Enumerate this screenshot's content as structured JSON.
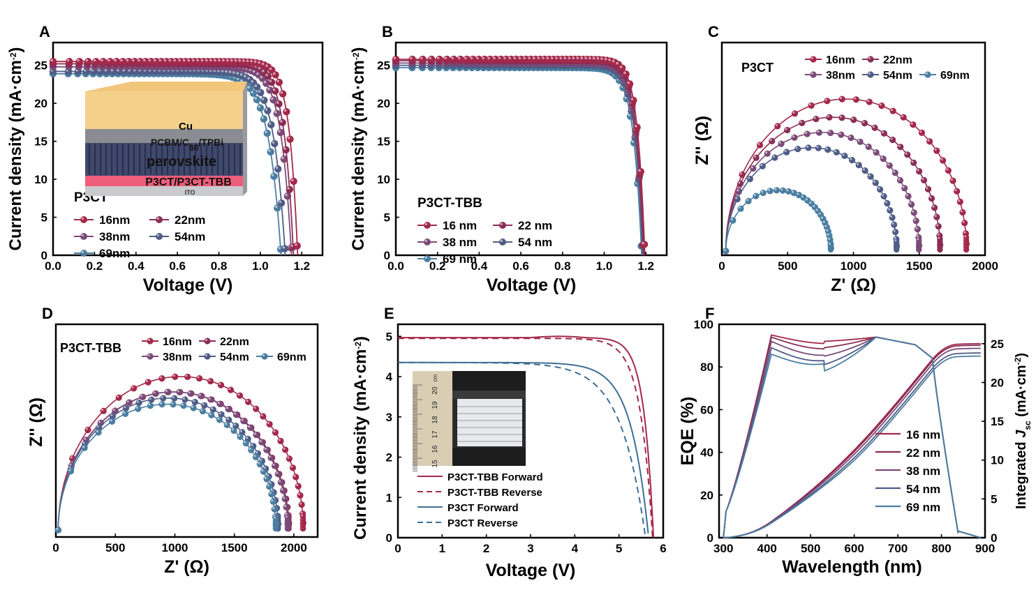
{
  "colors": {
    "16": "#A3284A",
    "22": "#8A2D55",
    "38": "#7A4A78",
    "54": "#4F5C86",
    "69": "#4A7EA0",
    "tbb": "#A3284A",
    "p3ct": "#3E6E93"
  },
  "chart_data": [
    {
      "panel": "A",
      "type": "line",
      "xlabel": "Voltage (V)",
      "ylabel": "Current density (mA·cm-2)",
      "xlim": [
        0,
        1.3
      ],
      "ylim": [
        0,
        28
      ],
      "xticks": [
        "0.0",
        "0.2",
        "0.4",
        "0.6",
        "0.8",
        "1.0",
        "1.2"
      ],
      "yticks": [
        "0",
        "5",
        "10",
        "15",
        "20",
        "25"
      ],
      "legend_title": "P3CT",
      "legend_labels": [
        "16nm",
        "22nm",
        "38nm",
        "54nm",
        "69nm"
      ],
      "inset_layers": [
        "Cu",
        "PCBM/C60/TPBi",
        "perovskite",
        "P3CT/P3CT-TBB",
        "ITO"
      ],
      "series": [
        {
          "name": "16nm",
          "jsc": 25.5,
          "voc": 1.18,
          "knee": 0.04
        },
        {
          "name": "22nm",
          "jsc": 25.2,
          "voc": 1.16,
          "knee": 0.045
        },
        {
          "name": "38nm",
          "jsc": 24.8,
          "voc": 1.15,
          "knee": 0.05
        },
        {
          "name": "54nm",
          "jsc": 24.2,
          "voc": 1.12,
          "knee": 0.055
        },
        {
          "name": "69nm",
          "jsc": 23.9,
          "voc": 1.1,
          "knee": 0.06
        }
      ]
    },
    {
      "panel": "B",
      "type": "line",
      "xlabel": "Voltage (V)",
      "ylabel": "Current density (mA·cm-2)",
      "xlim": [
        0,
        1.3
      ],
      "ylim": [
        0,
        28
      ],
      "xticks": [
        "0.0",
        "0.2",
        "0.4",
        "0.6",
        "0.8",
        "1.0",
        "1.2"
      ],
      "yticks": [
        "0",
        "5",
        "10",
        "15",
        "20",
        "25"
      ],
      "legend_title": "P3CT-TBB",
      "legend_labels": [
        "16 nm",
        "22 nm",
        "38 nm",
        "54 nm",
        "69 nm"
      ],
      "series": [
        {
          "name": "16 nm",
          "jsc": 25.8,
          "voc": 1.195,
          "knee": 0.035
        },
        {
          "name": "22 nm",
          "jsc": 25.6,
          "voc": 1.19,
          "knee": 0.036
        },
        {
          "name": "38 nm",
          "jsc": 25.3,
          "voc": 1.188,
          "knee": 0.037
        },
        {
          "name": "54 nm",
          "jsc": 25.0,
          "voc": 1.185,
          "knee": 0.038
        },
        {
          "name": "69 nm",
          "jsc": 24.7,
          "voc": 1.18,
          "knee": 0.04
        }
      ]
    },
    {
      "panel": "C",
      "type": "scatter",
      "xlabel": "Z' (Ω)",
      "ylabel": "Z'' (Ω)",
      "xlim": [
        0,
        2000
      ],
      "xticks": [
        "0",
        "500",
        "1000",
        "1500",
        "2000"
      ],
      "legend_title": "P3CT",
      "legend_labels": [
        "16nm",
        "22nm",
        "38nm",
        "54nm",
        "69nm"
      ],
      "series": [
        {
          "name": "16nm",
          "x0": 30,
          "x1": 1860
        },
        {
          "name": "22nm",
          "x0": 30,
          "x1": 1660
        },
        {
          "name": "38nm",
          "x0": 30,
          "x1": 1500
        },
        {
          "name": "54nm",
          "x0": 30,
          "x1": 1330
        },
        {
          "name": "69nm",
          "x0": 30,
          "x1": 830
        }
      ]
    },
    {
      "panel": "D",
      "type": "scatter",
      "xlabel": "Z' (Ω)",
      "ylabel": "Z'' (Ω)",
      "xlim": [
        0,
        2200
      ],
      "xticks": [
        "0",
        "500",
        "1000",
        "1500",
        "2000"
      ],
      "legend_title": "P3CT-TBB",
      "legend_labels": [
        "16nm",
        "22nm",
        "38nm",
        "54nm",
        "69nm"
      ],
      "series": [
        {
          "name": "16nm",
          "x0": 20,
          "x1": 2080
        },
        {
          "name": "22nm",
          "x0": 20,
          "x1": 1960
        },
        {
          "name": "38nm",
          "x0": 20,
          "x1": 1950
        },
        {
          "name": "54nm",
          "x0": 20,
          "x1": 1870
        },
        {
          "name": "69nm",
          "x0": 20,
          "x1": 1850
        }
      ]
    },
    {
      "panel": "E",
      "type": "line",
      "xlabel": "Voltage (V)",
      "ylabel": "Current density (mA·cm-2)",
      "xlim": [
        0,
        6
      ],
      "ylim": [
        0,
        5.3
      ],
      "xticks": [
        "0",
        "1",
        "2",
        "3",
        "4",
        "5",
        "6"
      ],
      "yticks": [
        "0",
        "1",
        "2",
        "3",
        "4",
        "5"
      ],
      "ruler_labels": [
        "20",
        "19",
        "18",
        "17",
        "16",
        "15"
      ],
      "ruler_unit": "cm",
      "legend_labels": [
        "P3CT-TBB Forward",
        "P3CT-TBB Reverse",
        "P3CT Forward",
        "P3CT Reverse"
      ],
      "series": [
        {
          "name": "P3CT-TBB Forward",
          "jsc": 4.97,
          "voc": 5.78,
          "knee": 0.22,
          "dash": false
        },
        {
          "name": "P3CT-TBB Reverse",
          "jsc": 4.95,
          "voc": 5.76,
          "knee": 0.28,
          "dash": true
        },
        {
          "name": "P3CT Forward",
          "jsc": 4.35,
          "voc": 5.67,
          "knee": 0.4,
          "dash": false
        },
        {
          "name": "P3CT Reverse",
          "jsc": 4.35,
          "voc": 5.6,
          "knee": 0.55,
          "dash": true
        }
      ]
    },
    {
      "panel": "F",
      "type": "line",
      "xlabel": "Wavelength (nm)",
      "ylabel": "EQE (%)",
      "ylabel_right": "Integrated Jsc (mA·cm-2)",
      "xlim": [
        290,
        900
      ],
      "ylim": [
        0,
        100
      ],
      "ylim_right": [
        0,
        27.5
      ],
      "xticks": [
        "300",
        "400",
        "500",
        "600",
        "700",
        "800",
        "900"
      ],
      "yticks": [
        "0",
        "20",
        "40",
        "60",
        "80",
        "100"
      ],
      "yticks_right": [
        "0",
        "5",
        "10",
        "15",
        "20",
        "25"
      ],
      "legend_labels": [
        "16 nm",
        "22 nm",
        "38 nm",
        "54 nm",
        "69 nm"
      ],
      "series": [
        {
          "name": "16 nm",
          "peak": 95,
          "dip": 92,
          "final_jsc": 25.0
        },
        {
          "name": "22 nm",
          "peak": 94,
          "dip": 89,
          "final_jsc": 24.8
        },
        {
          "name": "38 nm",
          "peak": 92,
          "dip": 85,
          "final_jsc": 24.4
        },
        {
          "name": "54 nm",
          "peak": 89,
          "dip": 81,
          "final_jsc": 23.8
        },
        {
          "name": "69 nm",
          "peak": 86,
          "dip": 78,
          "final_jsc": 23.4
        }
      ]
    }
  ]
}
